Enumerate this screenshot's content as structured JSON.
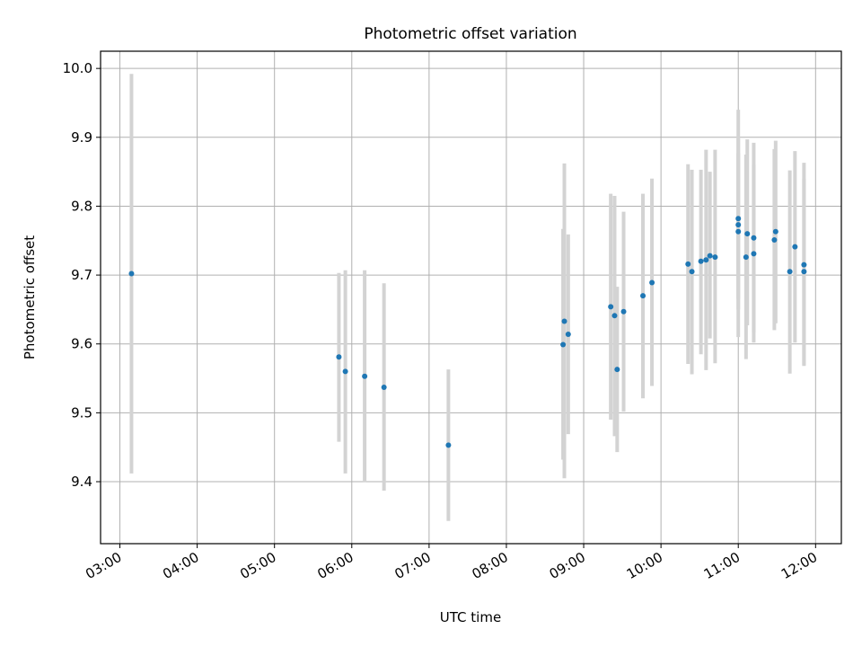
{
  "chart_data": {
    "type": "scatter",
    "title": "Photometric offset variation",
    "xlabel": "UTC time",
    "ylabel": "Photometric offset",
    "x_axis_type": "time",
    "xlim": [
      "02:45",
      "12:20"
    ],
    "ylim": [
      9.31,
      10.025
    ],
    "x_ticks": [
      "03:00",
      "04:00",
      "05:00",
      "06:00",
      "07:00",
      "08:00",
      "09:00",
      "10:00",
      "11:00",
      "12:00"
    ],
    "y_ticks": [
      "9.4",
      "9.5",
      "9.6",
      "9.7",
      "9.8",
      "9.9",
      "10.0"
    ],
    "grid": true,
    "point_color": "#1f77b4",
    "errorbar_color": "#d3d3d3",
    "series": [
      {
        "points": [
          {
            "x": "03:09",
            "y": 9.702,
            "lo": 9.412,
            "hi": 9.992
          },
          {
            "x": "05:50",
            "y": 9.581,
            "lo": 9.458,
            "hi": 9.703
          },
          {
            "x": "05:55",
            "y": 9.56,
            "lo": 9.412,
            "hi": 9.707
          },
          {
            "x": "06:10",
            "y": 9.553,
            "lo": 9.399,
            "hi": 9.707
          },
          {
            "x": "06:25",
            "y": 9.537,
            "lo": 9.387,
            "hi": 9.688
          },
          {
            "x": "07:15",
            "y": 9.453,
            "lo": 9.343,
            "hi": 9.563
          },
          {
            "x": "08:44",
            "y": 9.599,
            "lo": 9.432,
            "hi": 9.767
          },
          {
            "x": "08:45",
            "y": 9.633,
            "lo": 9.405,
            "hi": 9.862
          },
          {
            "x": "08:48",
            "y": 9.614,
            "lo": 9.469,
            "hi": 9.759
          },
          {
            "x": "09:21",
            "y": 9.654,
            "lo": 9.49,
            "hi": 9.818
          },
          {
            "x": "09:24",
            "y": 9.641,
            "lo": 9.466,
            "hi": 9.815
          },
          {
            "x": "09:26",
            "y": 9.563,
            "lo": 9.443,
            "hi": 9.683
          },
          {
            "x": "09:31",
            "y": 9.647,
            "lo": 9.502,
            "hi": 9.792
          },
          {
            "x": "09:46",
            "y": 9.67,
            "lo": 9.521,
            "hi": 9.818
          },
          {
            "x": "09:53",
            "y": 9.689,
            "lo": 9.539,
            "hi": 9.84
          },
          {
            "x": "10:21",
            "y": 9.716,
            "lo": 9.571,
            "hi": 9.861
          },
          {
            "x": "10:24",
            "y": 9.705,
            "lo": 9.556,
            "hi": 9.853
          },
          {
            "x": "10:31",
            "y": 9.72,
            "lo": 9.585,
            "hi": 9.853
          },
          {
            "x": "10:35",
            "y": 9.722,
            "lo": 9.562,
            "hi": 9.882
          },
          {
            "x": "10:38",
            "y": 9.728,
            "lo": 9.608,
            "hi": 9.85
          },
          {
            "x": "10:42",
            "y": 9.726,
            "lo": 9.572,
            "hi": 9.882
          },
          {
            "x": "11:00",
            "y": 9.782,
            "lo": 9.665,
            "hi": 9.898
          },
          {
            "x": "11:00",
            "y": 9.773,
            "lo": 9.61,
            "hi": 9.94
          },
          {
            "x": "11:00",
            "y": 9.763,
            "lo": 9.65,
            "hi": 9.877
          },
          {
            "x": "11:06",
            "y": 9.726,
            "lo": 9.578,
            "hi": 9.875
          },
          {
            "x": "11:07",
            "y": 9.76,
            "lo": 9.627,
            "hi": 9.897
          },
          {
            "x": "11:12",
            "y": 9.754,
            "lo": 9.617,
            "hi": 9.892
          },
          {
            "x": "11:12",
            "y": 9.731,
            "lo": 9.602,
            "hi": 9.86
          },
          {
            "x": "11:28",
            "y": 9.751,
            "lo": 9.62,
            "hi": 9.883
          },
          {
            "x": "11:29",
            "y": 9.763,
            "lo": 9.63,
            "hi": 9.895
          },
          {
            "x": "11:40",
            "y": 9.705,
            "lo": 9.557,
            "hi": 9.852
          },
          {
            "x": "11:44",
            "y": 9.741,
            "lo": 9.602,
            "hi": 9.88
          },
          {
            "x": "11:51",
            "y": 9.715,
            "lo": 9.568,
            "hi": 9.863
          },
          {
            "x": "11:51",
            "y": 9.705,
            "lo": 9.57,
            "hi": 9.84
          }
        ]
      }
    ]
  }
}
